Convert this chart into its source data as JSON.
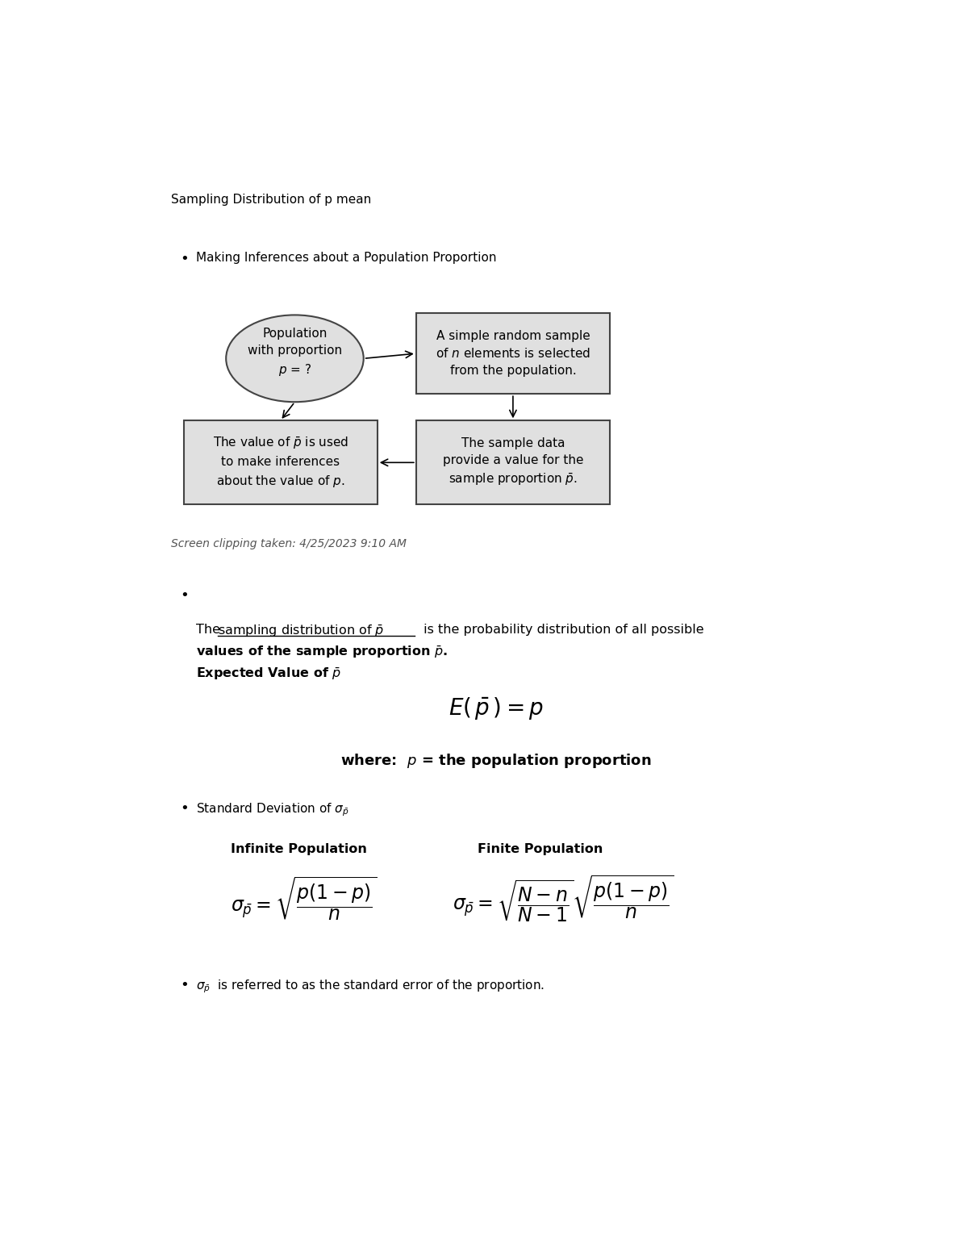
{
  "title": "Sampling Distribution of p mean",
  "bullet1": "Making Inferences about a Population Proportion",
  "screen_clipping": "Screen clipping taken: 4/25/2023 9:10 AM",
  "bg_color": "#ffffff",
  "box_fill": "#e0e0e0",
  "box_edge": "#444444",
  "text_color": "#000000",
  "fig_width": 12.0,
  "fig_height": 15.53
}
